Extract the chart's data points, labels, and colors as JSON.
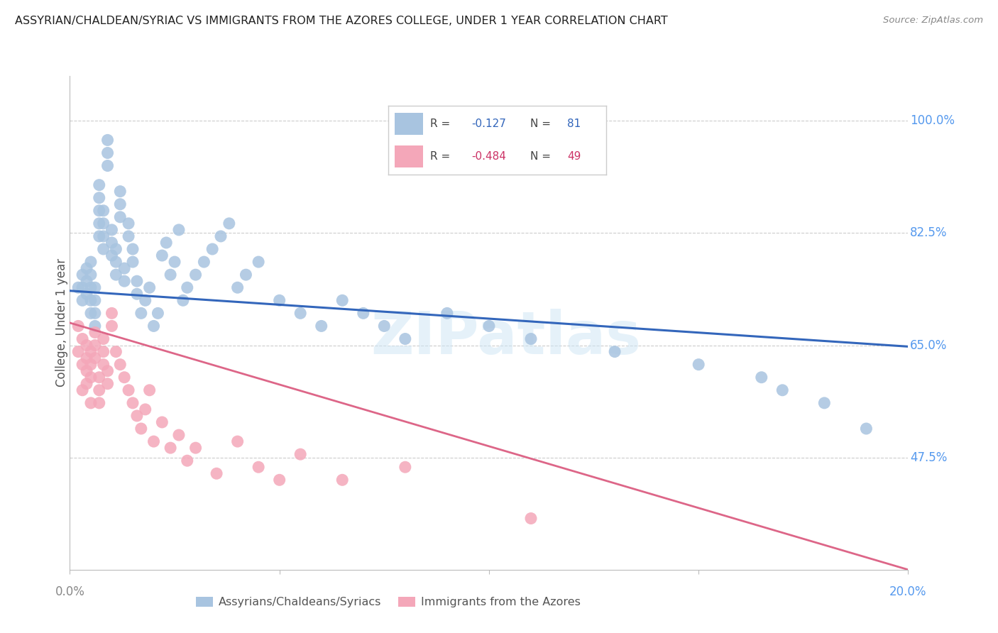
{
  "title": "ASSYRIAN/CHALDEAN/SYRIAC VS IMMIGRANTS FROM THE AZORES COLLEGE, UNDER 1 YEAR CORRELATION CHART",
  "source": "Source: ZipAtlas.com",
  "ylabel": "College, Under 1 year",
  "ytick_labels": [
    "100.0%",
    "82.5%",
    "65.0%",
    "47.5%"
  ],
  "ytick_values": [
    1.0,
    0.825,
    0.65,
    0.475
  ],
  "xlim": [
    0.0,
    0.2
  ],
  "ylim": [
    0.3,
    1.07
  ],
  "blue_r": -0.127,
  "blue_n": 81,
  "pink_r": -0.484,
  "pink_n": 49,
  "blue_color": "#a8c4e0",
  "pink_color": "#f4a7b9",
  "blue_line_color": "#3366bb",
  "pink_line_color": "#dd6688",
  "watermark": "ZIPatlas",
  "blue_line_y0": 0.735,
  "blue_line_y1": 0.648,
  "pink_line_y0": 0.685,
  "pink_line_y1": 0.3,
  "blue_points_x": [
    0.002,
    0.003,
    0.003,
    0.003,
    0.004,
    0.004,
    0.004,
    0.005,
    0.005,
    0.005,
    0.005,
    0.005,
    0.006,
    0.006,
    0.006,
    0.006,
    0.007,
    0.007,
    0.007,
    0.007,
    0.007,
    0.008,
    0.008,
    0.008,
    0.008,
    0.009,
    0.009,
    0.009,
    0.01,
    0.01,
    0.01,
    0.011,
    0.011,
    0.011,
    0.012,
    0.012,
    0.012,
    0.013,
    0.013,
    0.014,
    0.014,
    0.015,
    0.015,
    0.016,
    0.016,
    0.017,
    0.018,
    0.019,
    0.02,
    0.021,
    0.022,
    0.023,
    0.024,
    0.025,
    0.026,
    0.027,
    0.028,
    0.03,
    0.032,
    0.034,
    0.036,
    0.038,
    0.04,
    0.042,
    0.045,
    0.05,
    0.055,
    0.06,
    0.065,
    0.07,
    0.075,
    0.08,
    0.09,
    0.1,
    0.11,
    0.13,
    0.15,
    0.165,
    0.17,
    0.18,
    0.19
  ],
  "blue_points_y": [
    0.74,
    0.72,
    0.74,
    0.76,
    0.73,
    0.75,
    0.77,
    0.7,
    0.72,
    0.74,
    0.76,
    0.78,
    0.68,
    0.7,
    0.72,
    0.74,
    0.82,
    0.84,
    0.86,
    0.88,
    0.9,
    0.8,
    0.82,
    0.84,
    0.86,
    0.93,
    0.95,
    0.97,
    0.79,
    0.81,
    0.83,
    0.76,
    0.78,
    0.8,
    0.85,
    0.87,
    0.89,
    0.75,
    0.77,
    0.82,
    0.84,
    0.78,
    0.8,
    0.73,
    0.75,
    0.7,
    0.72,
    0.74,
    0.68,
    0.7,
    0.79,
    0.81,
    0.76,
    0.78,
    0.83,
    0.72,
    0.74,
    0.76,
    0.78,
    0.8,
    0.82,
    0.84,
    0.74,
    0.76,
    0.78,
    0.72,
    0.7,
    0.68,
    0.72,
    0.7,
    0.68,
    0.66,
    0.7,
    0.68,
    0.66,
    0.64,
    0.62,
    0.6,
    0.58,
    0.56,
    0.52
  ],
  "pink_points_x": [
    0.002,
    0.002,
    0.003,
    0.003,
    0.003,
    0.004,
    0.004,
    0.004,
    0.004,
    0.005,
    0.005,
    0.005,
    0.005,
    0.006,
    0.006,
    0.006,
    0.007,
    0.007,
    0.007,
    0.008,
    0.008,
    0.008,
    0.009,
    0.009,
    0.01,
    0.01,
    0.011,
    0.012,
    0.013,
    0.014,
    0.015,
    0.016,
    0.017,
    0.018,
    0.019,
    0.02,
    0.022,
    0.024,
    0.026,
    0.028,
    0.03,
    0.035,
    0.04,
    0.045,
    0.05,
    0.055,
    0.065,
    0.08,
    0.11
  ],
  "pink_points_y": [
    0.68,
    0.64,
    0.66,
    0.62,
    0.58,
    0.65,
    0.63,
    0.61,
    0.59,
    0.64,
    0.62,
    0.6,
    0.56,
    0.67,
    0.65,
    0.63,
    0.6,
    0.58,
    0.56,
    0.62,
    0.64,
    0.66,
    0.59,
    0.61,
    0.68,
    0.7,
    0.64,
    0.62,
    0.6,
    0.58,
    0.56,
    0.54,
    0.52,
    0.55,
    0.58,
    0.5,
    0.53,
    0.49,
    0.51,
    0.47,
    0.49,
    0.45,
    0.5,
    0.46,
    0.44,
    0.48,
    0.44,
    0.46,
    0.38
  ]
}
